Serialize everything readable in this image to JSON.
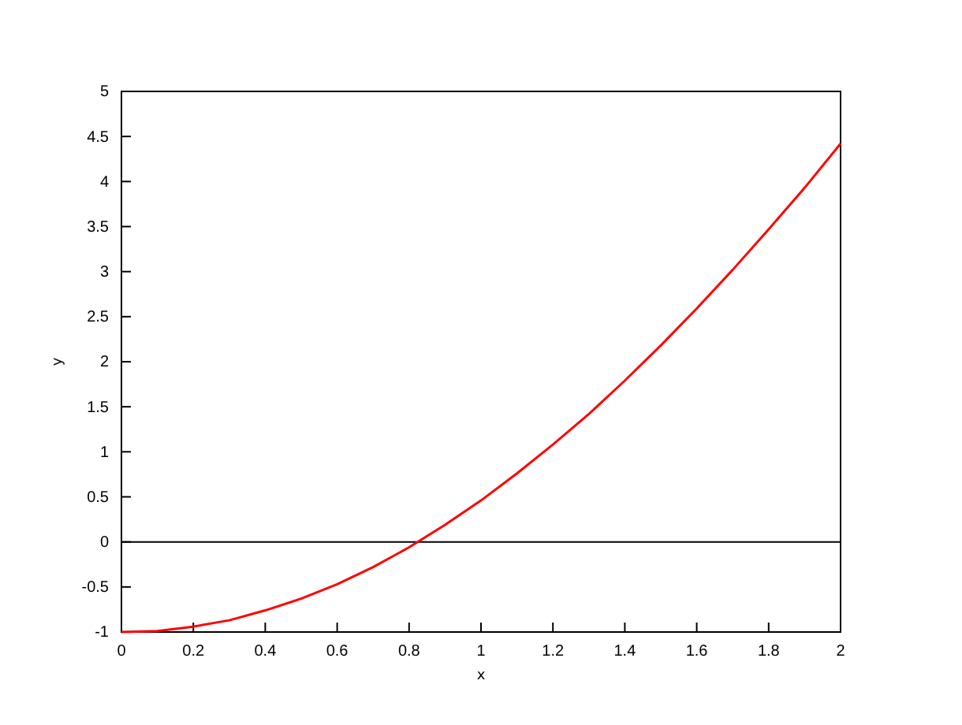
{
  "chart_data": {
    "type": "line",
    "xlabel": "x",
    "ylabel": "y",
    "x": [
      0,
      0.1,
      0.2,
      0.3,
      0.4,
      0.5,
      0.6,
      0.7,
      0.8,
      0.9,
      1,
      1.1,
      1.2,
      1.3,
      1.4,
      1.5,
      1.6,
      1.7,
      1.8,
      1.9,
      2
    ],
    "series": [
      {
        "color": "#ff0000",
        "values": [
          -1,
          -0.99,
          -0.94,
          -0.87,
          -0.76,
          -0.63,
          -0.47,
          -0.28,
          -0.06,
          0.19,
          0.46,
          0.76,
          1.08,
          1.42,
          1.79,
          2.18,
          2.59,
          3.02,
          3.47,
          3.93,
          4.42
        ]
      }
    ],
    "xlim": [
      0,
      2
    ],
    "xticks": [
      0,
      0.2,
      0.4,
      0.6,
      0.8,
      1,
      1.2,
      1.4,
      1.6,
      1.8,
      2
    ],
    "ylim": [
      -1,
      5
    ],
    "yticks": [
      -1,
      -0.5,
      0,
      0.5,
      1,
      1.5,
      2,
      2.5,
      3,
      3.5,
      4,
      4.5,
      5
    ],
    "ref_lines": [
      {
        "axis": "y",
        "value": 0,
        "color": "#000000"
      }
    ],
    "grid": false,
    "marker": "none",
    "line_style": "solid"
  }
}
